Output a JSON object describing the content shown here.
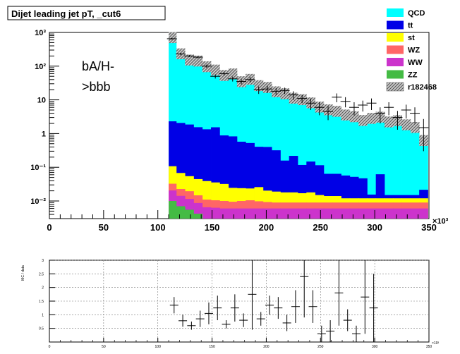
{
  "chart_data": [
    {
      "type": "bar",
      "title": "Dijet leading jet pT, _cut6",
      "annotation": "bA/H->bbb",
      "annotation_lines": [
        "bA/H-",
        ">bbb"
      ],
      "x_scale_label": "×10³",
      "xlim": [
        0,
        350
      ],
      "ylim": [
        0.003,
        1000
      ],
      "yscale": "log",
      "x_ticks": [
        0,
        50,
        100,
        150,
        200,
        250,
        300,
        350
      ],
      "x_tick_labels": [
        "0",
        "50",
        "100",
        "150",
        "200",
        "250",
        "300",
        "350"
      ],
      "y_ticks": [
        0.01,
        0.1,
        1,
        10,
        100,
        1000
      ],
      "y_tick_labels": [
        "10⁻²",
        "10⁻¹",
        "1",
        "10",
        "10²",
        "10³"
      ],
      "legend_position": "top-right",
      "bin_edges": [
        110,
        117,
        125,
        133,
        141,
        149,
        157,
        165,
        173,
        181,
        189,
        197,
        205,
        213,
        221,
        229,
        237,
        245,
        253,
        261,
        269,
        277,
        285,
        293,
        301,
        309,
        317,
        325,
        333,
        341,
        349
      ],
      "stacked_series": [
        {
          "name": "QCD",
          "color": "#00ffff",
          "values": [
            700,
            230,
            150,
            140,
            95,
            75,
            52,
            58,
            34,
            40,
            26,
            23,
            17,
            15,
            11,
            10,
            8,
            6,
            5,
            4.5,
            3.5,
            3.1,
            2.4,
            2.8,
            3,
            2.2,
            2.4,
            1.8,
            1.5,
            0.6
          ]
        },
        {
          "name": "tt",
          "color": "#0000e6",
          "values": [
            2.2,
            2.0,
            1.8,
            1.5,
            1.3,
            1.5,
            0.85,
            0.8,
            0.55,
            0.5,
            0.38,
            0.38,
            0.3,
            0.14,
            0.2,
            0.1,
            0.13,
            0.1,
            0.05,
            0.05,
            0.045,
            0.04,
            0.035,
            0.0035,
            0.05,
            0.003,
            0.003,
            0.003,
            0.003,
            0.0095
          ]
        },
        {
          "name": "st",
          "color": "#ffff00",
          "values": [
            0.075,
            0.045,
            0.035,
            0.03,
            0.028,
            0.025,
            0.022,
            0.015,
            0.014,
            0.013,
            0.016,
            0.011,
            0.01,
            0.009,
            0.009,
            0.008,
            0.009,
            0.006,
            0.005,
            0.005,
            0.003,
            0.003,
            0.003,
            0.003,
            0.003,
            0.003,
            0.003,
            0.003,
            0.003,
            0.003
          ]
        },
        {
          "name": "WZ",
          "color": "#ff6666",
          "values": [
            0.012,
            0.0085,
            0.008,
            0.006,
            0.0045,
            0.0042,
            0.004,
            0.0035,
            0.004,
            0.0045,
            0.0038,
            0.0033,
            0.003,
            0.003,
            0.003,
            0.003,
            0.003,
            0.003,
            0.003,
            0.003,
            0.003,
            0.003,
            0.003,
            0.003,
            0.003,
            0.003,
            0.003,
            0.003,
            0.003,
            0.003
          ]
        },
        {
          "name": "WW",
          "color": "#cc33cc",
          "values": [
            0.0105,
            0.0072,
            0.006,
            0.0045,
            0.0035,
            0.0033,
            0.003,
            0.003,
            0.003,
            0.003,
            0.003,
            0.003,
            0.003,
            0.003,
            0.003,
            0.003,
            0.003,
            0.003,
            0.003,
            0.003,
            0.003,
            0.003,
            0.003,
            0.003,
            0.003,
            0.003,
            0.003,
            0.003,
            0.003,
            0.003
          ]
        },
        {
          "name": "ZZ",
          "color": "#44bb44",
          "values": [
            0.01,
            0.007,
            0.0055,
            0.0042,
            0.003,
            0.003,
            0.003,
            0.003,
            0.003,
            0.003,
            0.003,
            0.003,
            0.003,
            0.003,
            0.003,
            0.003,
            0.003,
            0.003,
            0.003,
            0.003,
            0.003,
            0.003,
            0.003,
            0.003,
            0.003,
            0.003,
            0.003,
            0.003,
            0.003,
            0.003
          ]
        }
      ],
      "data_series": {
        "name": "r182468",
        "points": [
          {
            "x": 113,
            "y": 650,
            "ey": 35
          },
          {
            "x": 121,
            "y": 230,
            "ey": 18
          },
          {
            "x": 129,
            "y": 200,
            "ey": 15
          },
          {
            "x": 137,
            "y": 185,
            "ey": 14
          },
          {
            "x": 145,
            "y": 100,
            "ey": 11
          },
          {
            "x": 153,
            "y": 50,
            "ey": 7
          },
          {
            "x": 161,
            "y": 60,
            "ey": 8
          },
          {
            "x": 169,
            "y": 42,
            "ey": 7
          },
          {
            "x": 177,
            "y": 35,
            "ey": 6
          },
          {
            "x": 185,
            "y": 40,
            "ey": 7
          },
          {
            "x": 193,
            "y": 20,
            "ey": 5
          },
          {
            "x": 201,
            "y": 21,
            "ey": 5
          },
          {
            "x": 209,
            "y": 18,
            "ey": 4
          },
          {
            "x": 217,
            "y": 19,
            "ey": 4
          },
          {
            "x": 225,
            "y": 14,
            "ey": 4
          },
          {
            "x": 233,
            "y": 11,
            "ey": 3
          },
          {
            "x": 241,
            "y": 8,
            "ey": 3
          },
          {
            "x": 249,
            "y": 6,
            "ey": 2.5
          },
          {
            "x": 257,
            "y": 4.5,
            "ey": 2
          },
          {
            "x": 265,
            "y": 12,
            "ey": 3.5
          },
          {
            "x": 273,
            "y": 9,
            "ey": 3
          },
          {
            "x": 281,
            "y": 6,
            "ey": 2.5
          },
          {
            "x": 289,
            "y": 7,
            "ey": 2.5
          },
          {
            "x": 297,
            "y": 8,
            "ey": 3
          },
          {
            "x": 305,
            "y": 4,
            "ey": 2
          },
          {
            "x": 313,
            "y": 6,
            "ey": 2.5
          },
          {
            "x": 321,
            "y": 3,
            "ey": 1.7
          },
          {
            "x": 329,
            "y": 5,
            "ey": 2.2
          },
          {
            "x": 337,
            "y": 4,
            "ey": 2
          },
          {
            "x": 345,
            "y": 1.5,
            "ey": 1.2
          }
        ]
      }
    },
    {
      "type": "scatter",
      "ylabel": "MC / data",
      "x_scale_label": "×10³",
      "xlim": [
        0,
        350
      ],
      "ylim": [
        0,
        3
      ],
      "grid": true,
      "x_ticks": [
        0,
        50,
        100,
        150,
        200,
        250,
        300,
        350
      ],
      "x_tick_labels": [
        "0",
        "50",
        "100",
        "150",
        "200",
        "250",
        "300",
        "350"
      ],
      "y_ticks": [
        0.5,
        1,
        1.5,
        2,
        2.5,
        3
      ],
      "y_tick_labels": [
        "0.5",
        "1",
        "1.5",
        "2",
        "2.5",
        "3"
      ],
      "points": [
        {
          "x": 115,
          "y": 1.35,
          "ey": 0.3
        },
        {
          "x": 123,
          "y": 0.78,
          "ey": 0.22
        },
        {
          "x": 131,
          "y": 0.6,
          "ey": 0.15
        },
        {
          "x": 139,
          "y": 0.85,
          "ey": 0.3
        },
        {
          "x": 147,
          "y": 1.05,
          "ey": 0.4
        },
        {
          "x": 155,
          "y": 1.25,
          "ey": 0.45
        },
        {
          "x": 163,
          "y": 0.65,
          "ey": 0.15
        },
        {
          "x": 171,
          "y": 1.25,
          "ey": 0.5
        },
        {
          "x": 179,
          "y": 0.8,
          "ey": 0.25
        },
        {
          "x": 187,
          "y": 1.75,
          "ey": 1.3
        },
        {
          "x": 195,
          "y": 0.85,
          "ey": 0.25
        },
        {
          "x": 203,
          "y": 1.35,
          "ey": 0.35
        },
        {
          "x": 211,
          "y": 1.25,
          "ey": 0.4
        },
        {
          "x": 219,
          "y": 0.7,
          "ey": 0.3
        },
        {
          "x": 227,
          "y": 1.3,
          "ey": 0.6
        },
        {
          "x": 235,
          "y": 2.4,
          "ey": 1.5
        },
        {
          "x": 243,
          "y": 1.3,
          "ey": 0.6
        },
        {
          "x": 251,
          "y": 0.3,
          "ey": 0.3
        },
        {
          "x": 259,
          "y": 0.4,
          "ey": 0.4
        },
        {
          "x": 267,
          "y": 1.8,
          "ey": 1.2
        },
        {
          "x": 275,
          "y": 0.8,
          "ey": 0.4
        },
        {
          "x": 283,
          "y": 0.3,
          "ey": 0.3
        },
        {
          "x": 291,
          "y": 1.65,
          "ey": 1.35
        },
        {
          "x": 299,
          "y": 1.25,
          "ey": 1.25
        }
      ]
    }
  ]
}
